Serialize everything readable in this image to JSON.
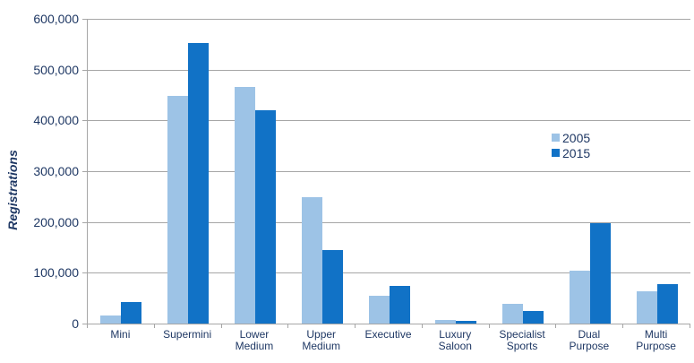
{
  "chart_data": {
    "type": "bar",
    "title": "",
    "xlabel": "",
    "ylabel": "Registrations",
    "ylim": [
      0,
      600000
    ],
    "ytick_step": 100000,
    "ytick_labels": [
      "0",
      "100,000",
      "200,000",
      "300,000",
      "400,000",
      "500,000",
      "600,000"
    ],
    "grid": "horizontal-only",
    "legend_position": "center-right-inside-plot",
    "categories": [
      "Mini",
      "Supermini",
      "Lower\nMedium",
      "Upper\nMedium",
      "Executive",
      "Luxury\nSaloon",
      "Specialist\nSports",
      "Dual\nPurpose",
      "Multi\nPurpose"
    ],
    "series": [
      {
        "name": "2005",
        "color": "#9DC3E6",
        "values": [
          16000,
          448000,
          466000,
          249000,
          55000,
          7000,
          38000,
          104000,
          64000
        ]
      },
      {
        "name": "2015",
        "color": "#1172C6",
        "values": [
          42000,
          552000,
          420000,
          145000,
          75000,
          5000,
          25000,
          198000,
          78000
        ]
      }
    ],
    "colors": {
      "axis_text": "#1F3864",
      "gridline": "#A6A6A6",
      "background": "#FFFFFF"
    }
  }
}
